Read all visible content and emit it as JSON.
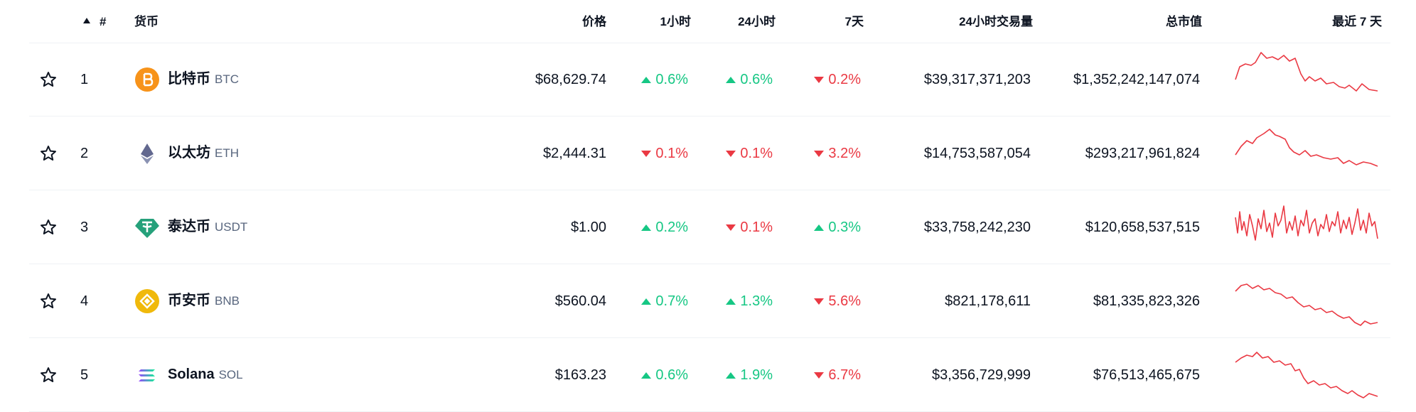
{
  "header": {
    "rank": "#",
    "coin": "货币",
    "price": "价格",
    "change_1h": "1小时",
    "change_24h": "24小时",
    "change_7d": "7天",
    "volume_24h": "24小时交易量",
    "market_cap": "总市值",
    "last_7d": "最近 7 天"
  },
  "rows": [
    {
      "rank": 1,
      "name": "比特币",
      "symbol": "BTC",
      "price": "$68,629.74",
      "change_1h": {
        "value": 0.6,
        "label": "0.6%"
      },
      "change_24h": {
        "value": 0.6,
        "label": "0.6%"
      },
      "change_7d": {
        "value": -0.2,
        "label": "0.2%"
      },
      "volume_24h": "$39,317,371,203",
      "market_cap": "$1,352,242,147,074"
    },
    {
      "rank": 2,
      "name": "以太坊",
      "symbol": "ETH",
      "price": "$2,444.31",
      "change_1h": {
        "value": -0.1,
        "label": "0.1%"
      },
      "change_24h": {
        "value": -0.1,
        "label": "0.1%"
      },
      "change_7d": {
        "value": -3.2,
        "label": "3.2%"
      },
      "volume_24h": "$14,753,587,054",
      "market_cap": "$293,217,961,824"
    },
    {
      "rank": 3,
      "name": "泰达币",
      "symbol": "USDT",
      "price": "$1.00",
      "change_1h": {
        "value": 0.2,
        "label": "0.2%"
      },
      "change_24h": {
        "value": -0.1,
        "label": "0.1%"
      },
      "change_7d": {
        "value": 0.3,
        "label": "0.3%"
      },
      "volume_24h": "$33,758,242,230",
      "market_cap": "$120,658,537,515"
    },
    {
      "rank": 4,
      "name": "币安币",
      "symbol": "BNB",
      "price": "$560.04",
      "change_1h": {
        "value": 0.7,
        "label": "0.7%"
      },
      "change_24h": {
        "value": 1.3,
        "label": "1.3%"
      },
      "change_7d": {
        "value": -5.6,
        "label": "5.6%"
      },
      "volume_24h": "$821,178,611",
      "market_cap": "$81,335,823,326"
    },
    {
      "rank": 5,
      "name": "Solana",
      "symbol": "SOL",
      "price": "$163.23",
      "change_1h": {
        "value": 0.6,
        "label": "0.6%"
      },
      "change_24h": {
        "value": 1.9,
        "label": "1.9%"
      },
      "change_7d": {
        "value": -6.7,
        "label": "6.7%"
      },
      "volume_24h": "$3,356,729,999",
      "market_cap": "$76,513,465,675"
    }
  ]
}
